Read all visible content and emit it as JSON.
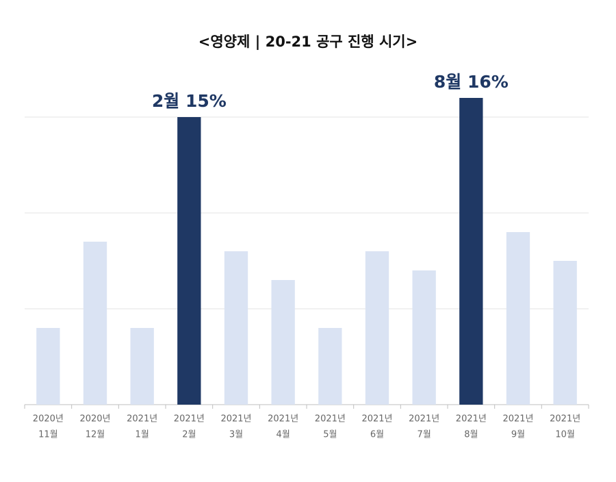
{
  "chart_data": {
    "type": "bar",
    "title": "<영양제 | 20-21 공구 진행 시기>",
    "categories": [
      [
        "2020년",
        "11월"
      ],
      [
        "2020년",
        "12월"
      ],
      [
        "2021년",
        "1월"
      ],
      [
        "2021년",
        "2월"
      ],
      [
        "2021년",
        "3월"
      ],
      [
        "2021년",
        "4월"
      ],
      [
        "2021년",
        "5월"
      ],
      [
        "2021년",
        "6월"
      ],
      [
        "2021년",
        "7월"
      ],
      [
        "2021년",
        "8월"
      ],
      [
        "2021년",
        "9월"
      ],
      [
        "2021년",
        "10월"
      ]
    ],
    "values": [
      4,
      8.5,
      4,
      15,
      8,
      6.5,
      4,
      8,
      7,
      16,
      9,
      7.5
    ],
    "value_labels": [
      null,
      null,
      null,
      "2월 15%",
      null,
      null,
      null,
      null,
      null,
      "8월 16%",
      null,
      null
    ],
    "colors": [
      "#dae3f3",
      "#dae3f3",
      "#dae3f3",
      "#1f3864",
      "#dae3f3",
      "#dae3f3",
      "#dae3f3",
      "#dae3f3",
      "#dae3f3",
      "#1f3864",
      "#dae3f3",
      "#dae3f3"
    ],
    "ylim": [
      0,
      17
    ],
    "yticks": [
      0,
      5,
      10,
      15
    ],
    "grid": true
  }
}
